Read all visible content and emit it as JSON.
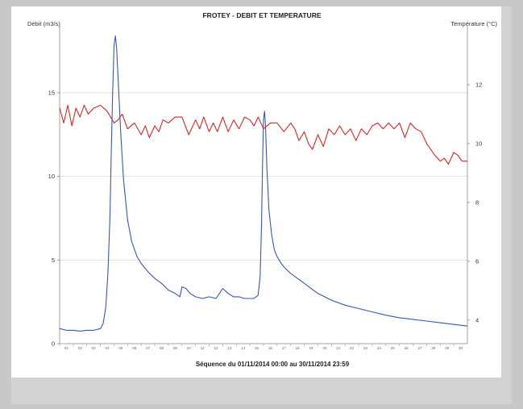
{
  "chart_data": {
    "type": "line",
    "title": "FROTEY - DEBIT ET TEMPERATURE",
    "ylabel_left": "Débit (m3/s)",
    "ylabel_right": "Température (°C)",
    "footer": "Séquence du  01/11/2014 00:00  au  30/11/2014 23:59",
    "x_range": [
      1,
      31
    ],
    "ylim_left": [
      0,
      19
    ],
    "ylim_right": [
      3.2,
      14
    ],
    "yticks_left": [
      0,
      5,
      10,
      15
    ],
    "yticks_right": [
      4,
      6,
      8,
      10,
      12
    ],
    "x_tick_labels": [
      "01",
      "02",
      "03",
      "04",
      "05",
      "06",
      "07",
      "08",
      "09",
      "10",
      "11",
      "12",
      "13",
      "14",
      "15",
      "16",
      "17",
      "18",
      "19",
      "20",
      "21",
      "22",
      "23",
      "24",
      "25",
      "26",
      "27",
      "28",
      "29",
      "30"
    ],
    "grid": "horizontal",
    "series": [
      {
        "axis": "left",
        "color": "#3a55b5",
        "x": [
          1.0,
          1.5,
          2.0,
          2.5,
          3.0,
          3.5,
          4.0,
          4.2,
          4.4,
          4.55,
          4.7,
          4.8,
          4.9,
          5.0,
          5.1,
          5.2,
          5.35,
          5.5,
          5.7,
          6.0,
          6.3,
          6.7,
          7.0,
          7.5,
          8.0,
          8.5,
          9.0,
          9.5,
          9.85,
          10.0,
          10.3,
          10.6,
          11.0,
          11.5,
          12.0,
          12.5,
          13.0,
          13.4,
          13.8,
          14.2,
          14.6,
          15.0,
          15.3,
          15.6,
          15.75,
          15.85,
          15.92,
          16.0,
          16.08,
          16.15,
          16.25,
          16.4,
          16.6,
          16.8,
          17.0,
          17.3,
          17.6,
          18.0,
          18.5,
          19.0,
          19.5,
          20.0,
          20.5,
          21.0,
          22.0,
          23.0,
          24.0,
          25.0,
          26.0,
          27.0,
          28.0,
          29.0,
          29.5,
          30.0,
          30.5,
          31.0
        ],
        "values": [
          0.9,
          0.8,
          0.8,
          0.75,
          0.8,
          0.8,
          0.9,
          1.2,
          2.2,
          4.2,
          7.5,
          11.5,
          15.0,
          17.8,
          18.4,
          17.6,
          15.0,
          12.5,
          9.8,
          7.4,
          6.1,
          5.2,
          4.8,
          4.3,
          3.9,
          3.6,
          3.2,
          3.0,
          2.8,
          3.4,
          3.3,
          3.0,
          2.8,
          2.7,
          2.8,
          2.7,
          3.3,
          3.0,
          2.8,
          2.8,
          2.7,
          2.7,
          2.7,
          2.9,
          4.0,
          7.0,
          10.5,
          13.4,
          13.9,
          13.0,
          10.5,
          8.0,
          6.5,
          5.6,
          5.2,
          4.8,
          4.5,
          4.2,
          3.9,
          3.6,
          3.3,
          3.0,
          2.8,
          2.6,
          2.3,
          2.1,
          1.9,
          1.7,
          1.55,
          1.45,
          1.35,
          1.25,
          1.2,
          1.15,
          1.1,
          1.05
        ]
      },
      {
        "axis": "right",
        "color": "#dd2525",
        "x": [
          1.0,
          1.3,
          1.6,
          1.9,
          2.2,
          2.5,
          2.8,
          3.1,
          3.5,
          4.0,
          4.5,
          5.0,
          5.3,
          5.6,
          6.0,
          6.5,
          7.0,
          7.3,
          7.6,
          8.0,
          8.3,
          8.6,
          9.0,
          9.5,
          10.0,
          10.5,
          11.0,
          11.3,
          11.6,
          12.0,
          12.3,
          12.6,
          13.0,
          13.4,
          13.8,
          14.2,
          14.6,
          15.0,
          15.3,
          15.6,
          16.0,
          16.5,
          17.0,
          17.5,
          18.0,
          18.3,
          18.6,
          19.0,
          19.3,
          19.6,
          20.0,
          20.4,
          20.8,
          21.2,
          21.6,
          22.0,
          22.4,
          22.8,
          23.2,
          23.6,
          24.0,
          24.4,
          24.8,
          25.2,
          25.6,
          26.0,
          26.4,
          26.8,
          27.2,
          27.6,
          28.0,
          28.3,
          28.6,
          29.0,
          29.3,
          29.6,
          30.0,
          30.3,
          30.6,
          31.0
        ],
        "values": [
          11.2,
          10.7,
          11.3,
          10.6,
          11.2,
          10.9,
          11.3,
          11.0,
          11.2,
          11.3,
          11.1,
          10.7,
          10.8,
          11.0,
          10.5,
          10.7,
          10.3,
          10.6,
          10.2,
          10.6,
          10.4,
          10.8,
          10.7,
          10.9,
          10.9,
          10.3,
          10.8,
          10.5,
          10.9,
          10.4,
          10.7,
          10.4,
          10.9,
          10.4,
          10.8,
          10.5,
          10.9,
          10.8,
          10.6,
          10.9,
          10.5,
          10.7,
          10.7,
          10.4,
          10.7,
          10.5,
          10.1,
          10.4,
          10.0,
          9.8,
          10.3,
          9.9,
          10.5,
          10.3,
          10.6,
          10.3,
          10.5,
          10.1,
          10.5,
          10.3,
          10.6,
          10.7,
          10.5,
          10.7,
          10.5,
          10.7,
          10.2,
          10.7,
          10.5,
          10.4,
          10.0,
          9.8,
          9.6,
          9.4,
          9.5,
          9.3,
          9.7,
          9.6,
          9.4,
          9.4
        ]
      }
    ]
  }
}
